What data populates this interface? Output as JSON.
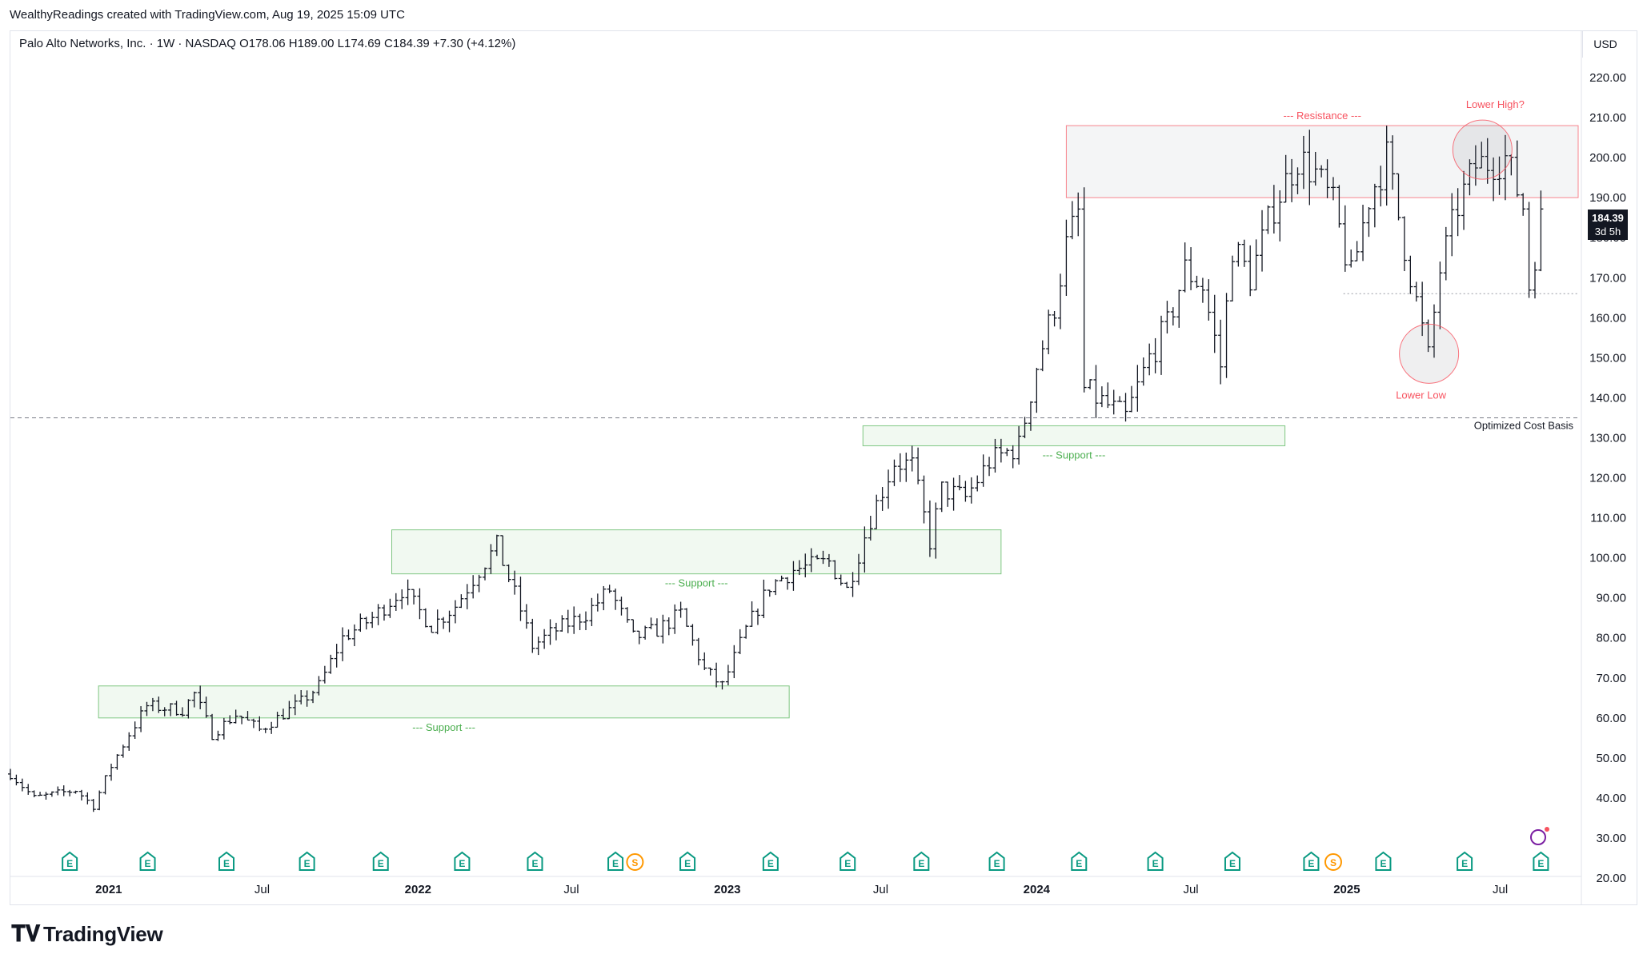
{
  "header": {
    "attribution": "WealthyReadings created with TradingView.com, Aug 19, 2025 15:09 UTC",
    "legend": "Palo Alto Networks, Inc. · 1W · NASDAQ O178.06 H189.00 L174.69 C184.39 +7.30 (+4.12%)",
    "currency": "USD"
  },
  "price_tag": {
    "price": "184.39",
    "countdown": "3d 5h"
  },
  "branding": {
    "logo_text": "TradingView"
  },
  "colors": {
    "bar": "#131722",
    "support_zone": "#4caf50",
    "resistance_zone": "#f7525f",
    "earnings_badge": "#089981",
    "dividend_badge": "#ff9800"
  },
  "chart_data": {
    "type": "ohlc",
    "timeframe": "1W",
    "symbol": "PANW",
    "ylim": [
      20,
      225
    ],
    "x_range": [
      "2020-09-07",
      "2025-10-01"
    ],
    "y_ticks": [
      "220.00",
      "210.00",
      "200.00",
      "190.00",
      "180.00",
      "170.00",
      "160.00",
      "150.00",
      "140.00",
      "130.00",
      "120.00",
      "110.00",
      "100.00",
      "90.00",
      "80.00",
      "70.00",
      "60.00",
      "50.00",
      "40.00",
      "30.00",
      "20.00"
    ],
    "x_ticks": [
      {
        "label": "2021",
        "date": "2021-01-01",
        "bold": true
      },
      {
        "label": "Jul",
        "date": "2021-07-01",
        "bold": false
      },
      {
        "label": "2022",
        "date": "2022-01-01",
        "bold": true
      },
      {
        "label": "Jul",
        "date": "2022-07-01",
        "bold": false
      },
      {
        "label": "2023",
        "date": "2023-01-01",
        "bold": true
      },
      {
        "label": "Jul",
        "date": "2023-07-01",
        "bold": false
      },
      {
        "label": "2024",
        "date": "2024-01-01",
        "bold": true
      },
      {
        "label": "Jul",
        "date": "2024-07-01",
        "bold": false
      },
      {
        "label": "2025",
        "date": "2025-01-01",
        "bold": true
      },
      {
        "label": "Jul",
        "date": "2025-07-01",
        "bold": false
      }
    ],
    "zones": [
      {
        "type": "support",
        "from": "2020-12-20",
        "to": "2023-03-15",
        "low": 60,
        "high": 68,
        "label": "--- Support ---"
      },
      {
        "type": "support",
        "from": "2021-12-01",
        "to": "2023-11-20",
        "low": 96,
        "high": 107,
        "label": "--- Support ---"
      },
      {
        "type": "support",
        "from": "2023-06-10",
        "to": "2024-10-20",
        "low": 128,
        "high": 133,
        "label": "--- Support ---"
      },
      {
        "type": "resistance",
        "from": "2024-02-05",
        "to": "2025-10-01",
        "low": 190,
        "high": 208,
        "label": "--- Resistance ---"
      }
    ],
    "horizontal_lines": [
      {
        "price": 135,
        "label": "Optimized Cost Basis",
        "style": "dashed"
      },
      {
        "price": 166,
        "from": "2024-12-28",
        "to": "2025-10-01",
        "style": "dotted"
      }
    ],
    "annotations": [
      {
        "label": "Lower High?",
        "date": "2025-06-10",
        "price": 202,
        "color": "#f7525f"
      },
      {
        "label": "Lower Low",
        "date": "2025-04-08",
        "price": 151,
        "color": "#f7525f"
      }
    ],
    "events": [
      {
        "date": "2020-11-16",
        "type": "E"
      },
      {
        "date": "2021-02-16",
        "type": "E"
      },
      {
        "date": "2021-05-20",
        "type": "E"
      },
      {
        "date": "2021-08-23",
        "type": "E"
      },
      {
        "date": "2021-11-18",
        "type": "E"
      },
      {
        "date": "2022-02-22",
        "type": "E"
      },
      {
        "date": "2022-05-19",
        "type": "E"
      },
      {
        "date": "2022-08-22",
        "type": "E"
      },
      {
        "date": "2022-09-14",
        "type": "S"
      },
      {
        "date": "2022-11-15",
        "type": "E"
      },
      {
        "date": "2023-02-21",
        "type": "E"
      },
      {
        "date": "2023-05-23",
        "type": "E"
      },
      {
        "date": "2023-08-18",
        "type": "E"
      },
      {
        "date": "2023-11-15",
        "type": "E"
      },
      {
        "date": "2024-02-20",
        "type": "E"
      },
      {
        "date": "2024-05-20",
        "type": "E"
      },
      {
        "date": "2024-08-19",
        "type": "E"
      },
      {
        "date": "2024-11-20",
        "type": "E"
      },
      {
        "date": "2024-12-16",
        "type": "S"
      },
      {
        "date": "2025-02-13",
        "type": "E"
      },
      {
        "date": "2025-05-20",
        "type": "E"
      },
      {
        "date": "2025-08-18",
        "type": "E"
      }
    ],
    "path": [
      {
        "date": "2020-09-07",
        "close": 46
      },
      {
        "date": "2020-10-05",
        "close": 40
      },
      {
        "date": "2020-11-23",
        "close": 42
      },
      {
        "date": "2020-12-14",
        "close": 38
      },
      {
        "date": "2021-01-04",
        "close": 48
      },
      {
        "date": "2021-01-25",
        "close": 56
      },
      {
        "date": "2021-02-15",
        "close": 63
      },
      {
        "date": "2021-03-29",
        "close": 62
      },
      {
        "date": "2021-04-12",
        "close": 66
      },
      {
        "date": "2021-05-03",
        "close": 56
      },
      {
        "date": "2021-06-01",
        "close": 61
      },
      {
        "date": "2021-06-28",
        "close": 57
      },
      {
        "date": "2021-08-16",
        "close": 64
      },
      {
        "date": "2021-09-06",
        "close": 68
      },
      {
        "date": "2021-10-04",
        "close": 80
      },
      {
        "date": "2021-11-08",
        "close": 85
      },
      {
        "date": "2021-12-13",
        "close": 92
      },
      {
        "date": "2022-01-17",
        "close": 83
      },
      {
        "date": "2022-02-14",
        "close": 88
      },
      {
        "date": "2022-03-14",
        "close": 97
      },
      {
        "date": "2022-04-04",
        "close": 103
      },
      {
        "date": "2022-05-02",
        "close": 87
      },
      {
        "date": "2022-05-16",
        "close": 78
      },
      {
        "date": "2022-06-13",
        "close": 82
      },
      {
        "date": "2022-07-18",
        "close": 86
      },
      {
        "date": "2022-08-15",
        "close": 92
      },
      {
        "date": "2022-09-12",
        "close": 80
      },
      {
        "date": "2022-10-10",
        "close": 82
      },
      {
        "date": "2022-11-07",
        "close": 86
      },
      {
        "date": "2022-12-05",
        "close": 72
      },
      {
        "date": "2022-12-26",
        "close": 68
      },
      {
        "date": "2023-01-23",
        "close": 82
      },
      {
        "date": "2023-02-20",
        "close": 93
      },
      {
        "date": "2023-03-20",
        "close": 97
      },
      {
        "date": "2023-05-01",
        "close": 99
      },
      {
        "date": "2023-05-22",
        "close": 92
      },
      {
        "date": "2023-06-19",
        "close": 110
      },
      {
        "date": "2023-07-17",
        "close": 124
      },
      {
        "date": "2023-08-07",
        "close": 123
      },
      {
        "date": "2023-08-28",
        "close": 104
      },
      {
        "date": "2023-09-11",
        "close": 117
      },
      {
        "date": "2023-10-09",
        "close": 115
      },
      {
        "date": "2023-11-06",
        "close": 124
      },
      {
        "date": "2023-12-11",
        "close": 128
      },
      {
        "date": "2024-01-01",
        "close": 148
      },
      {
        "date": "2024-01-22",
        "close": 163
      },
      {
        "date": "2024-02-05",
        "close": 178
      },
      {
        "date": "2024-02-19",
        "close": 186
      },
      {
        "date": "2024-02-26",
        "close": 142
      },
      {
        "date": "2024-03-25",
        "close": 138
      },
      {
        "date": "2024-04-15",
        "close": 135
      },
      {
        "date": "2024-05-13",
        "close": 150
      },
      {
        "date": "2024-06-03",
        "close": 158
      },
      {
        "date": "2024-06-24",
        "close": 172
      },
      {
        "date": "2024-07-15",
        "close": 168
      },
      {
        "date": "2024-08-05",
        "close": 148
      },
      {
        "date": "2024-08-19",
        "close": 178
      },
      {
        "date": "2024-09-09",
        "close": 170
      },
      {
        "date": "2024-10-07",
        "close": 188
      },
      {
        "date": "2024-11-04",
        "close": 200
      },
      {
        "date": "2024-11-25",
        "close": 196
      },
      {
        "date": "2024-12-16",
        "close": 188
      },
      {
        "date": "2025-01-06",
        "close": 170
      },
      {
        "date": "2025-01-27",
        "close": 190
      },
      {
        "date": "2025-02-17",
        "close": 200
      },
      {
        "date": "2025-03-10",
        "close": 178
      },
      {
        "date": "2025-04-07",
        "close": 150
      },
      {
        "date": "2025-04-21",
        "close": 172
      },
      {
        "date": "2025-05-12",
        "close": 188
      },
      {
        "date": "2025-06-02",
        "close": 198
      },
      {
        "date": "2025-07-07",
        "close": 200
      },
      {
        "date": "2025-07-28",
        "close": 188
      },
      {
        "date": "2025-08-04",
        "close": 168
      },
      {
        "date": "2025-08-18",
        "close": 184.39
      }
    ]
  }
}
